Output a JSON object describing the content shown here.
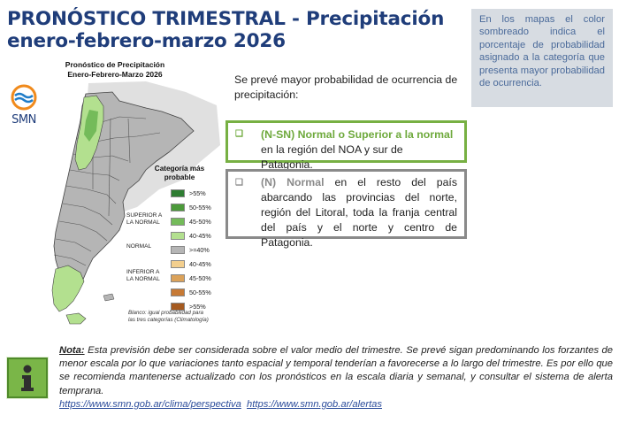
{
  "header": {
    "title_line1": "PRONÓSTICO TRIMESTRAL - Precipitación",
    "title_line2": "enero-febrero-marzo 2026"
  },
  "info_box": {
    "text": "En los mapas el color sombreado indica el porcentaje de probabilidad asignado a la categoría que presenta mayor probabilidad de ocurrencia."
  },
  "map": {
    "title_line1": "Pronóstico de Precipitación",
    "title_line2": "Enero-Febrero-Marzo 2026",
    "logo_text": "SMN",
    "legend": {
      "title_line1": "Categoría más",
      "title_line2": "probable",
      "group_superior_line1": "SUPERIOR A",
      "group_superior_line2": "LA NORMAL",
      "group_normal": "NORMAL",
      "group_inferior_line1": "INFERIOR A",
      "group_inferior_line2": "LA NORMAL",
      "items": [
        {
          "label": ">55%",
          "color": "#2e7d32"
        },
        {
          "label": "50-55%",
          "color": "#4c9a3a"
        },
        {
          "label": "45-50%",
          "color": "#74bb5a"
        },
        {
          "label": "40-45%",
          "color": "#b3e08f"
        },
        {
          "label": ">=40%",
          "color": "#b5b5b5"
        },
        {
          "label": "40-45%",
          "color": "#f3cf8e"
        },
        {
          "label": "45-50%",
          "color": "#dba25a"
        },
        {
          "label": "50-55%",
          "color": "#c77a35"
        },
        {
          "label": ">55%",
          "color": "#a55a20"
        }
      ],
      "note_line1": "Blanco: igual probabilidad para",
      "note_line2": "las tres categorías (Climatología)"
    }
  },
  "intro": {
    "text": "Se prevé mayor probabilidad de ocurrencia de precipitación:"
  },
  "forecast_ns": {
    "bullet": "❑",
    "highlight": "(N-SN) Normal o Superior a la normal",
    "rest": " en la región del NOA y sur de Patagonia."
  },
  "forecast_n": {
    "bullet": "❑",
    "highlight": "(N) Normal",
    "rest": " en el resto del país abarcando las provincias del norte, región del Litoral, toda la franja central del país y el norte y centro de Patagonia."
  },
  "note": {
    "label": "Nota:",
    "text": " Esta previsión debe ser considerada sobre el valor medio del trimestre. Se prevé sigan predominando los forzantes de menor escala por lo que variaciones tanto espacial y temporal tenderían a favorecerse a lo largo del trimestre. Es por ello que se recomienda mantenerse actualizado con los pronósticos en la escala diaria y semanal, y consultar el sistema de alerta temprana.",
    "link1": "https://www.smn.gob.ar/clima/perspectiva",
    "link2": "https://www.smn.gob.ar/alertas",
    "icon_glyph": "i"
  },
  "colors": {
    "title": "#1f3d7a",
    "box_ns_border": "#77b043",
    "box_n_border": "#8a8a8a",
    "info_bg": "#d7dce2",
    "link": "#2a4b9a"
  }
}
